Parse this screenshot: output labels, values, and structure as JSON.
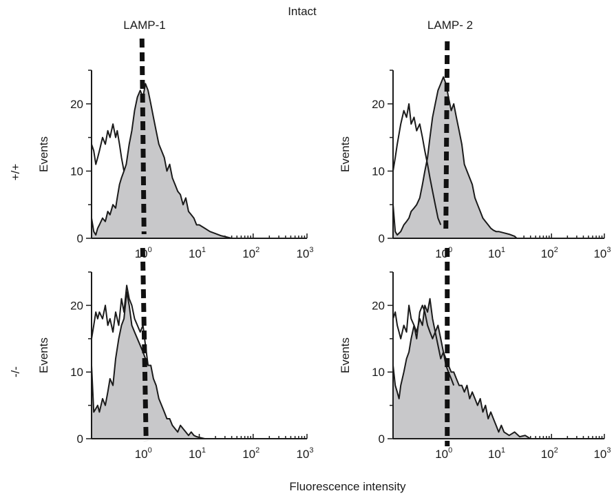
{
  "figure": {
    "title": "Intact",
    "column_labels": [
      "LAMP-1",
      "LAMP- 2"
    ],
    "row_labels": [
      "+/+",
      "-/-"
    ],
    "xlabel": "Fluorescence intensity"
  },
  "chart_data": [
    {
      "type": "area",
      "row": "+/+",
      "column": "LAMP-1",
      "ylabel": "Events",
      "xscale": "log",
      "xlim": [
        0.1,
        1000
      ],
      "ylim": [
        0,
        25
      ],
      "yticks": [
        0,
        10,
        20
      ],
      "xticks": [
        "10^0",
        "10^1",
        "10^2",
        "10^3"
      ],
      "marker_x": 1,
      "series": [
        {
          "style": "filled",
          "x": [
            0.1,
            0.11,
            0.12,
            0.13,
            0.14,
            0.16,
            0.18,
            0.2,
            0.22,
            0.25,
            0.28,
            0.3,
            0.33,
            0.36,
            0.4,
            0.44,
            0.5,
            0.56,
            0.63,
            0.71,
            0.8,
            0.9,
            1.0,
            1.12,
            1.26,
            1.41,
            1.58,
            1.78,
            2.0,
            2.24,
            2.51,
            2.82,
            3.16,
            3.55,
            3.98,
            4.47,
            5.01,
            5.62,
            6.31,
            7.08,
            7.94,
            8.91,
            10,
            12.6,
            15.8,
            20,
            25,
            31.6,
            39.8
          ],
          "y": [
            3,
            1,
            0.5,
            1.5,
            2,
            3,
            2.5,
            4,
            3.5,
            5,
            4.5,
            6,
            8,
            9,
            10,
            11,
            14,
            16,
            19,
            21,
            22,
            21,
            23,
            22,
            20,
            18,
            16,
            14,
            13,
            12,
            10,
            11,
            9,
            8,
            7,
            6.5,
            5,
            6,
            4,
            3.5,
            3,
            2,
            2,
            1.5,
            1,
            0.7,
            0.4,
            0.2,
            0
          ]
        },
        {
          "style": "open",
          "x": [
            0.1,
            0.11,
            0.12,
            0.13,
            0.14,
            0.16,
            0.18,
            0.2,
            0.22,
            0.25,
            0.28,
            0.3,
            0.33,
            0.36,
            0.4
          ],
          "y": [
            14,
            13,
            11,
            12,
            13,
            15,
            14,
            16,
            15,
            17,
            15,
            16,
            14,
            12,
            10
          ]
        }
      ]
    },
    {
      "type": "area",
      "row": "+/+",
      "column": "LAMP- 2",
      "ylabel": "Events",
      "xscale": "log",
      "xlim": [
        0.1,
        1000
      ],
      "ylim": [
        0,
        25
      ],
      "yticks": [
        0,
        10,
        20
      ],
      "xticks": [
        "10^0",
        "10^1",
        "10^2",
        "10^3"
      ],
      "marker_x": 1,
      "series": [
        {
          "style": "filled",
          "x": [
            0.1,
            0.11,
            0.12,
            0.14,
            0.16,
            0.18,
            0.2,
            0.22,
            0.25,
            0.28,
            0.32,
            0.36,
            0.4,
            0.45,
            0.5,
            0.56,
            0.63,
            0.71,
            0.8,
            0.9,
            1.0,
            1.12,
            1.26,
            1.41,
            1.58,
            1.78,
            2.0,
            2.24,
            2.51,
            2.82,
            3.16,
            3.55,
            3.98,
            4.47,
            5.01,
            5.62,
            6.31,
            7.08,
            7.94,
            8.91,
            10,
            12.6,
            15.8,
            20,
            22
          ],
          "y": [
            5,
            1,
            0.5,
            1,
            2,
            2.5,
            3,
            4,
            4.5,
            5,
            6,
            8,
            10,
            12,
            15,
            18,
            20,
            22,
            23,
            24,
            23,
            21,
            19,
            20,
            18,
            16,
            14,
            11,
            10,
            9,
            8,
            6,
            5,
            4,
            3,
            2.5,
            2,
            1.5,
            1.2,
            1,
            1,
            0.8,
            0.6,
            0.3,
            0
          ]
        },
        {
          "style": "open",
          "x": [
            0.1,
            0.11,
            0.12,
            0.14,
            0.16,
            0.18,
            0.2,
            0.22,
            0.25,
            0.28,
            0.32,
            0.36,
            0.4,
            0.45,
            0.5,
            0.56,
            0.63,
            0.71,
            0.8
          ],
          "y": [
            10,
            12,
            14,
            17,
            19,
            18,
            20,
            17,
            18,
            16,
            17,
            15,
            13,
            11,
            9,
            7,
            5,
            3,
            2
          ]
        }
      ]
    },
    {
      "type": "area",
      "row": "-/-",
      "column": "LAMP-1",
      "ylabel": "Events",
      "xscale": "log",
      "xlim": [
        0.1,
        1000
      ],
      "ylim": [
        0,
        25
      ],
      "yticks": [
        0,
        10,
        20
      ],
      "xticks": [
        "10^0",
        "10^1",
        "10^2",
        "10^3"
      ],
      "marker_x": 1,
      "series": [
        {
          "style": "filled",
          "x": [
            0.1,
            0.11,
            0.12,
            0.13,
            0.14,
            0.16,
            0.18,
            0.2,
            0.22,
            0.25,
            0.28,
            0.32,
            0.36,
            0.4,
            0.45,
            0.5,
            0.56,
            0.63,
            0.71,
            0.8,
            0.9,
            1.0,
            1.12,
            1.26,
            1.41,
            1.58,
            1.78,
            2.0,
            2.24,
            2.51,
            2.82,
            3.16,
            3.55,
            3.98,
            4.47,
            5.01,
            5.62,
            6.31,
            7.08,
            7.94,
            8.91,
            10,
            12.6
          ],
          "y": [
            11,
            4,
            4.5,
            5,
            4,
            6,
            5,
            7,
            9,
            8,
            12,
            15,
            17,
            18,
            22,
            20,
            17,
            16,
            15,
            14,
            13,
            12,
            11,
            11,
            9,
            8,
            6,
            5,
            4,
            3,
            3,
            2,
            1.5,
            1,
            2,
            1.5,
            1,
            0.5,
            1,
            0.5,
            0.3,
            0.2,
            0
          ]
        },
        {
          "style": "open",
          "x": [
            0.1,
            0.11,
            0.12,
            0.13,
            0.14,
            0.16,
            0.18,
            0.2,
            0.22,
            0.25,
            0.28,
            0.32,
            0.36,
            0.4,
            0.45,
            0.5,
            0.56,
            0.63,
            0.71,
            0.8,
            0.9,
            1.0,
            1.12
          ],
          "y": [
            15,
            17,
            19,
            18,
            19,
            18,
            20,
            17,
            18,
            16,
            19,
            17,
            21,
            19,
            23,
            21,
            20,
            18,
            17,
            16,
            17,
            14,
            11
          ]
        }
      ]
    },
    {
      "type": "area",
      "row": "-/-",
      "column": "LAMP- 2",
      "ylabel": "Events",
      "xscale": "log",
      "xlim": [
        0.1,
        1000
      ],
      "ylim": [
        0,
        25
      ],
      "yticks": [
        0,
        10,
        20
      ],
      "xticks": [
        "10^0",
        "10^1",
        "10^2",
        "10^3"
      ],
      "marker_x": 1,
      "series": [
        {
          "style": "filled",
          "x": [
            0.1,
            0.11,
            0.12,
            0.13,
            0.14,
            0.16,
            0.18,
            0.2,
            0.22,
            0.25,
            0.28,
            0.32,
            0.36,
            0.4,
            0.45,
            0.5,
            0.56,
            0.63,
            0.71,
            0.8,
            0.9,
            1.0,
            1.12,
            1.26,
            1.41,
            1.58,
            1.78,
            2.0,
            2.24,
            2.51,
            2.82,
            3.16,
            3.55,
            3.98,
            4.47,
            5.01,
            5.62,
            6.31,
            7.08,
            7.94,
            8.91,
            10,
            11.2,
            12.6,
            15.8,
            20,
            25,
            31.6,
            39.8
          ],
          "y": [
            11,
            8,
            7,
            6,
            8,
            10,
            12,
            13,
            15,
            17,
            16,
            18,
            17,
            20,
            19,
            21,
            18,
            16,
            17,
            15,
            13,
            12,
            11,
            10,
            10,
            9,
            8,
            8,
            7,
            8,
            6,
            7,
            6,
            5,
            6,
            4,
            5,
            3,
            4,
            3,
            2,
            1,
            2,
            1,
            0.5,
            1,
            0.3,
            0.5,
            0
          ]
        },
        {
          "style": "open",
          "x": [
            0.1,
            0.11,
            0.12,
            0.13,
            0.14,
            0.16,
            0.18,
            0.2,
            0.22,
            0.25,
            0.28,
            0.32,
            0.36,
            0.4,
            0.45,
            0.5,
            0.56,
            0.63,
            0.71,
            0.8,
            0.9,
            1.0,
            1.12,
            1.26,
            1.41
          ],
          "y": [
            18,
            19,
            17,
            16,
            15,
            17,
            16,
            20,
            18,
            17,
            15,
            19,
            20,
            19,
            17,
            16,
            15,
            16,
            14,
            12,
            13,
            11,
            10,
            9,
            8
          ]
        }
      ]
    }
  ]
}
